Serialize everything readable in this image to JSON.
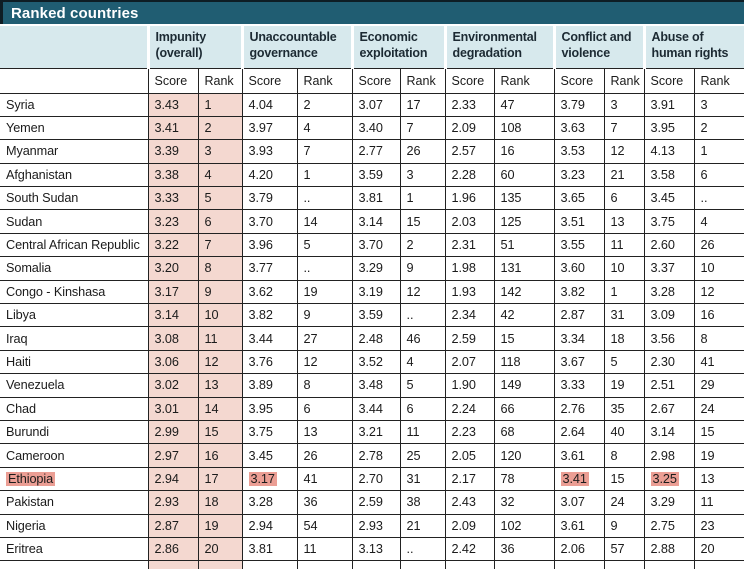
{
  "title": "Ranked countries",
  "colors": {
    "title_bar_bg": "#205d72",
    "title_text": "#ffffff",
    "group_header_bg": "#d7e9ed",
    "group_header_text": "#1c2a33",
    "impunity_column_bg": "#f4d8d0",
    "highlight_bg": "#eb9e94",
    "grid_border": "#222222",
    "body_text": "#1b1b1b"
  },
  "chart_data": {
    "type": "table",
    "title": "Ranked countries",
    "column_groups": [
      "Impunity (overall)",
      "Unaccountable governance",
      "Economic exploitation",
      "Environmental degradation",
      "Conflict and violence",
      "Abuse of human rights"
    ],
    "sub_columns": [
      "Score",
      "Rank"
    ],
    "missing_value_marker": "..",
    "rows": [
      {
        "country": "Syria",
        "cells": [
          "3.43",
          "1",
          "4.04",
          "2",
          "3.07",
          "17",
          "2.33",
          "47",
          "3.79",
          "3",
          "3.91",
          "3"
        ]
      },
      {
        "country": "Yemen",
        "cells": [
          "3.41",
          "2",
          "3.97",
          "4",
          "3.40",
          "7",
          "2.09",
          "108",
          "3.63",
          "7",
          "3.95",
          "2"
        ]
      },
      {
        "country": "Myanmar",
        "cells": [
          "3.39",
          "3",
          "3.93",
          "7",
          "2.77",
          "26",
          "2.57",
          "16",
          "3.53",
          "12",
          "4.13",
          "1"
        ]
      },
      {
        "country": "Afghanistan",
        "cells": [
          "3.38",
          "4",
          "4.20",
          "1",
          "3.59",
          "3",
          "2.28",
          "60",
          "3.23",
          "21",
          "3.58",
          "6"
        ]
      },
      {
        "country": "South Sudan",
        "cells": [
          "3.33",
          "5",
          "3.79",
          "..",
          "3.81",
          "1",
          "1.96",
          "135",
          "3.65",
          "6",
          "3.45",
          ".."
        ]
      },
      {
        "country": "Sudan",
        "cells": [
          "3.23",
          "6",
          "3.70",
          "14",
          "3.14",
          "15",
          "2.03",
          "125",
          "3.51",
          "13",
          "3.75",
          "4"
        ]
      },
      {
        "country": "Central African Republic",
        "cells": [
          "3.22",
          "7",
          "3.96",
          "5",
          "3.70",
          "2",
          "2.31",
          "51",
          "3.55",
          "11",
          "2.60",
          "26"
        ]
      },
      {
        "country": "Somalia",
        "cells": [
          "3.20",
          "8",
          "3.77",
          "..",
          "3.29",
          "9",
          "1.98",
          "131",
          "3.60",
          "10",
          "3.37",
          "10"
        ]
      },
      {
        "country": "Congo - Kinshasa",
        "cells": [
          "3.17",
          "9",
          "3.62",
          "19",
          "3.19",
          "12",
          "1.93",
          "142",
          "3.82",
          "1",
          "3.28",
          "12"
        ]
      },
      {
        "country": "Libya",
        "cells": [
          "3.14",
          "10",
          "3.82",
          "9",
          "3.59",
          "..",
          "2.34",
          "42",
          "2.87",
          "31",
          "3.09",
          "16"
        ]
      },
      {
        "country": "Iraq",
        "cells": [
          "3.08",
          "11",
          "3.44",
          "27",
          "2.48",
          "46",
          "2.59",
          "15",
          "3.34",
          "18",
          "3.56",
          "8"
        ]
      },
      {
        "country": "Haiti",
        "cells": [
          "3.06",
          "12",
          "3.76",
          "12",
          "3.52",
          "4",
          "2.07",
          "118",
          "3.67",
          "5",
          "2.30",
          "41"
        ]
      },
      {
        "country": "Venezuela",
        "cells": [
          "3.02",
          "13",
          "3.89",
          "8",
          "3.48",
          "5",
          "1.90",
          "149",
          "3.33",
          "19",
          "2.51",
          "29"
        ]
      },
      {
        "country": "Chad",
        "cells": [
          "3.01",
          "14",
          "3.95",
          "6",
          "3.44",
          "6",
          "2.24",
          "66",
          "2.76",
          "35",
          "2.67",
          "24"
        ]
      },
      {
        "country": "Burundi",
        "cells": [
          "2.99",
          "15",
          "3.75",
          "13",
          "3.21",
          "11",
          "2.23",
          "68",
          "2.64",
          "40",
          "3.14",
          "15"
        ]
      },
      {
        "country": "Cameroon",
        "cells": [
          "2.97",
          "16",
          "3.45",
          "26",
          "2.78",
          "25",
          "2.05",
          "120",
          "3.61",
          "8",
          "2.98",
          "19"
        ]
      },
      {
        "country": "Ethiopia",
        "country_highlight": true,
        "highlighted_cells": [
          2,
          8,
          10
        ],
        "cells": [
          "2.94",
          "17",
          "3.17",
          "41",
          "2.70",
          "31",
          "2.17",
          "78",
          "3.41",
          "15",
          "3.25",
          "13"
        ]
      },
      {
        "country": "Pakistan",
        "cells": [
          "2.93",
          "18",
          "3.28",
          "36",
          "2.59",
          "38",
          "2.43",
          "32",
          "3.07",
          "24",
          "3.29",
          "11"
        ]
      },
      {
        "country": "Nigeria",
        "cells": [
          "2.87",
          "19",
          "2.94",
          "54",
          "2.93",
          "21",
          "2.09",
          "102",
          "3.61",
          "9",
          "2.75",
          "23"
        ]
      },
      {
        "country": "Eritrea",
        "cells": [
          "2.86",
          "20",
          "3.81",
          "11",
          "3.13",
          "..",
          "2.42",
          "36",
          "2.06",
          "57",
          "2.88",
          "20"
        ]
      }
    ]
  }
}
